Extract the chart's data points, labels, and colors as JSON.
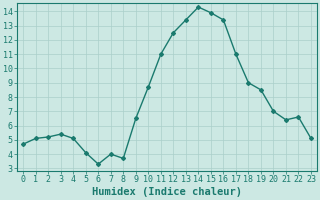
{
  "x": [
    0,
    1,
    2,
    3,
    4,
    5,
    6,
    7,
    8,
    9,
    10,
    11,
    12,
    13,
    14,
    15,
    16,
    17,
    18,
    19,
    20,
    21,
    22,
    23
  ],
  "y": [
    4.7,
    5.1,
    5.2,
    5.4,
    5.1,
    4.1,
    3.3,
    4.0,
    3.7,
    6.5,
    8.7,
    11.0,
    12.5,
    13.4,
    14.3,
    13.9,
    13.4,
    11.0,
    9.0,
    8.5,
    7.0,
    6.4,
    6.6,
    5.1
  ],
  "line_color": "#1a7a6e",
  "marker": "D",
  "marker_size": 2.0,
  "bg_color": "#cce8e3",
  "grid_color": "#aacfca",
  "xlabel": "Humidex (Indice chaleur)",
  "ylim": [
    2.8,
    14.6
  ],
  "xlim": [
    -0.5,
    23.5
  ],
  "yticks": [
    3,
    4,
    5,
    6,
    7,
    8,
    9,
    10,
    11,
    12,
    13,
    14
  ],
  "xticks": [
    0,
    1,
    2,
    3,
    4,
    5,
    6,
    7,
    8,
    9,
    10,
    11,
    12,
    13,
    14,
    15,
    16,
    17,
    18,
    19,
    20,
    21,
    22,
    23
  ],
  "xlabel_fontsize": 7.5,
  "tick_fontsize": 6.0,
  "line_width": 1.0,
  "spine_color": "#1a7a6e"
}
